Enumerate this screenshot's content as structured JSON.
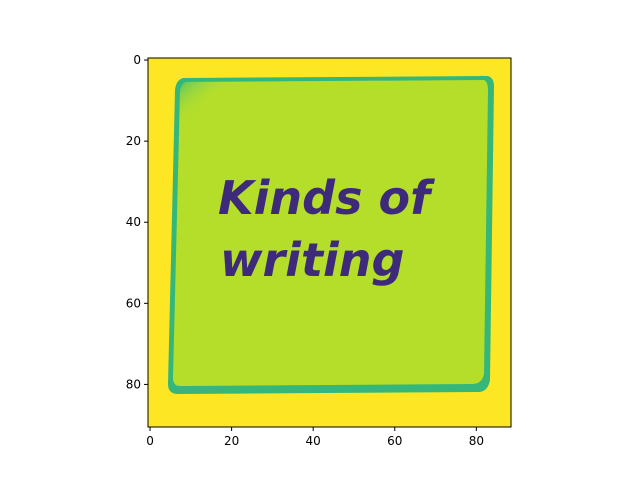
{
  "chart_data": {
    "type": "heatmap",
    "colormap": "viridis",
    "image_width": 89,
    "image_height": 91,
    "x_ticks": [
      0,
      20,
      40,
      60,
      80
    ],
    "y_ticks": [
      0,
      20,
      40,
      60,
      80
    ],
    "xlim": [
      -0.5,
      88.5
    ],
    "ylim": [
      90.5,
      -0.5
    ],
    "x_label": "",
    "y_label": "",
    "grid": false,
    "colors": {
      "border": "#fde725",
      "note": "#b5de2b",
      "note_corner": "#4ec36b",
      "note_edge": "#35b779",
      "text": "#3e2a7b",
      "frame": "#000000"
    },
    "image_text": [
      "Kinds of",
      "writing"
    ]
  }
}
